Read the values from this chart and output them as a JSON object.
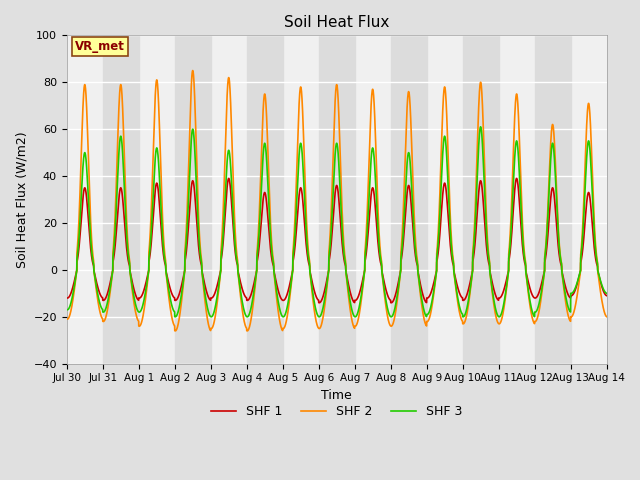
{
  "title": "Soil Heat Flux",
  "ylabel": "Soil Heat Flux (W/m2)",
  "xlabel": "Time",
  "ylim": [
    -40,
    100
  ],
  "yticks": [
    -40,
    -20,
    0,
    20,
    40,
    60,
    80,
    100
  ],
  "n_days": 15,
  "xtick_labels": [
    "Jul 30",
    "Jul 31",
    "Aug 1",
    "Aug 2",
    "Aug 3",
    "Aug 4",
    "Aug 5",
    "Aug 6",
    "Aug 7",
    "Aug 8",
    "Aug 9",
    "Aug 10",
    "Aug 11",
    "Aug 12",
    "Aug 13",
    "Aug 14"
  ],
  "bg_color": "#e0e0e0",
  "plot_bg_white": "#f0f0f0",
  "plot_bg_gray": "#dcdcdc",
  "line_colors": [
    "#cc0000",
    "#ff8800",
    "#22cc00"
  ],
  "line_labels": [
    "SHF 1",
    "SHF 2",
    "SHF 3"
  ],
  "vr_met_label": "VR_met",
  "vr_met_text_color": "#8b0000",
  "vr_met_bg": "#ffff99",
  "vr_met_edge": "#8b4513",
  "shf1_peaks": [
    35,
    35,
    37,
    38,
    39,
    33,
    35,
    36,
    35,
    36,
    37,
    38,
    39,
    35,
    33
  ],
  "shf1_troughs": [
    -12,
    -13,
    -12,
    -13,
    -12,
    -13,
    -13,
    -14,
    -13,
    -14,
    -12,
    -13,
    -12,
    -12,
    -11
  ],
  "shf2_peaks": [
    79,
    79,
    81,
    85,
    82,
    75,
    78,
    79,
    77,
    76,
    78,
    80,
    75,
    62,
    71
  ],
  "shf2_troughs": [
    -21,
    -22,
    -24,
    -26,
    -25,
    -26,
    -25,
    -25,
    -24,
    -24,
    -22,
    -23,
    -23,
    -22,
    -20
  ],
  "shf3_peaks": [
    50,
    57,
    52,
    60,
    51,
    54,
    54,
    54,
    52,
    50,
    57,
    61,
    55,
    54,
    55
  ],
  "shf3_troughs": [
    -17,
    -18,
    -18,
    -20,
    -20,
    -20,
    -20,
    -20,
    -20,
    -20,
    -19,
    -20,
    -20,
    -18,
    -10
  ]
}
